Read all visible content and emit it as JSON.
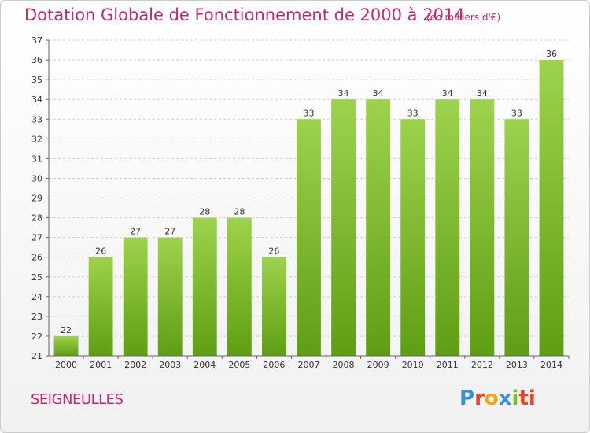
{
  "title": "Dotation Globale de Fonctionnement de 2000 à 2014",
  "subtitle": "(en milliers d'€)",
  "commune": "SEIGNEULLES",
  "logo": {
    "letters": [
      "P",
      "r",
      "o",
      "x",
      "i",
      "ti"
    ]
  },
  "colors": {
    "title": "#c6256d",
    "bar_top": "#9dd34c",
    "bar_bottom": "#5f9e12",
    "grid": "#d0d0d0"
  },
  "chart_data": {
    "type": "bar",
    "title": "Dotation Globale de Fonctionnement de 2000 à 2014",
    "subtitle": "(en milliers d'€)",
    "xlabel": "",
    "ylabel": "",
    "categories": [
      "2000",
      "2001",
      "2002",
      "2003",
      "2004",
      "2005",
      "2006",
      "2007",
      "2008",
      "2009",
      "2010",
      "2011",
      "2012",
      "2013",
      "2014"
    ],
    "values": [
      22,
      26,
      27,
      27,
      28,
      28,
      26,
      33,
      34,
      34,
      33,
      34,
      34,
      33,
      36
    ],
    "ylim": [
      21,
      37
    ],
    "yticks": [
      21,
      22,
      23,
      24,
      25,
      26,
      27,
      28,
      29,
      30,
      31,
      32,
      33,
      34,
      35,
      36,
      37
    ],
    "grid": true
  }
}
